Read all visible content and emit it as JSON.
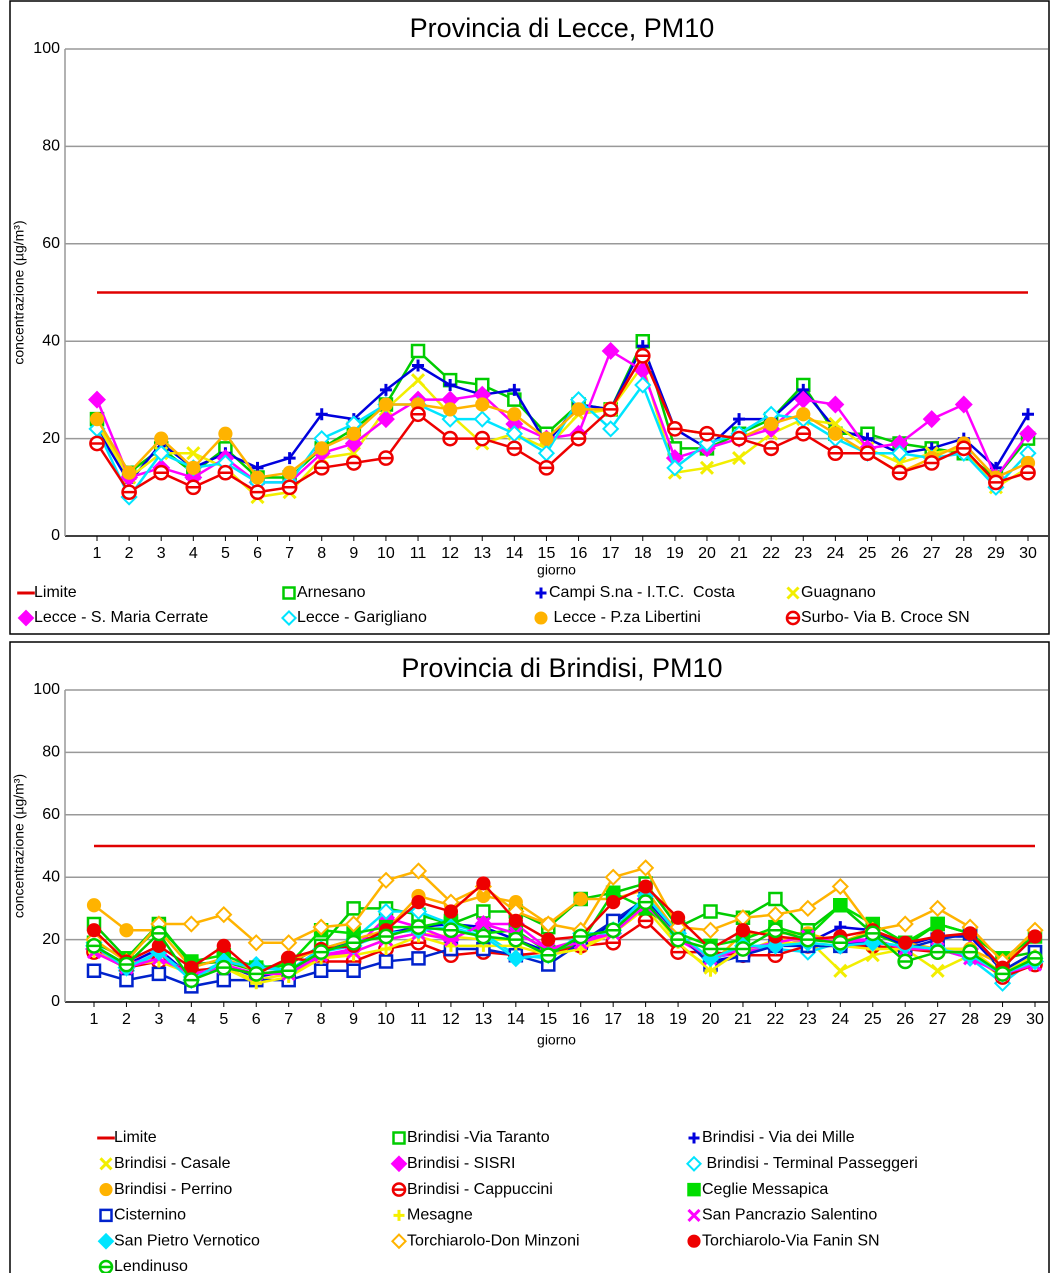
{
  "chart_data": [
    {
      "type": "line",
      "title": "Provincia di Lecce, PM10",
      "x_label": "giorno",
      "y_label": "concentrazione (µg/m³)",
      "categories": [
        "1",
        "2",
        "3",
        "4",
        "5",
        "6",
        "7",
        "8",
        "9",
        "10",
        "11",
        "12",
        "13",
        "14",
        "15",
        "16",
        "17",
        "18",
        "19",
        "20",
        "21",
        "22",
        "23",
        "24",
        "25",
        "26",
        "27",
        "28",
        "29",
        "30"
      ],
      "ylim": [
        0,
        100
      ],
      "yticks": [
        0,
        20,
        40,
        60,
        80,
        100
      ],
      "grid": true,
      "series": [
        {
          "name": "Limite",
          "color": "#e00000",
          "marker": "none",
          "values": [
            50,
            50,
            50,
            50,
            50,
            50,
            50,
            50,
            50,
            50,
            50,
            50,
            50,
            50,
            50,
            50,
            50,
            50,
            50,
            50,
            50,
            50,
            50,
            50,
            50,
            50,
            50,
            50,
            50,
            50
          ]
        },
        {
          "name": "Arnesano",
          "color": "#00cc00",
          "marker": "square-open",
          "values": [
            24,
            13,
            18,
            13,
            18,
            12,
            12,
            18,
            22,
            27,
            38,
            32,
            31,
            28,
            21,
            27,
            26,
            40,
            18,
            18,
            21,
            24,
            31,
            21,
            21,
            19,
            18,
            17,
            12,
            20
          ]
        },
        {
          "name": "Campi S.na - I.T.C.  Costa",
          "color": "#0000dd",
          "marker": "plus",
          "values": [
            22,
            11,
            19,
            14,
            17,
            14,
            16,
            25,
            24,
            30,
            35,
            31,
            29,
            30,
            19,
            27,
            26,
            39,
            22,
            18,
            24,
            24,
            30,
            22,
            20,
            17,
            18,
            20,
            14,
            25
          ]
        },
        {
          "name": "Guagnano",
          "color": "#f2ee00",
          "marker": "x",
          "values": [
            23,
            12,
            17,
            17,
            14,
            8,
            9,
            16,
            17,
            26,
            32,
            25,
            19,
            21,
            18,
            25,
            26,
            35,
            13,
            14,
            16,
            21,
            24,
            23,
            18,
            15,
            17,
            18,
            10,
            14
          ]
        },
        {
          "name": "Lecce - S. Maria Cerrate",
          "color": "#ff00ff",
          "marker": "diamond",
          "values": [
            28,
            12,
            14,
            12,
            16,
            11,
            11,
            17,
            19,
            24,
            28,
            28,
            29,
            23,
            20,
            21,
            38,
            34,
            16,
            18,
            20,
            22,
            28,
            27,
            18,
            19,
            24,
            27,
            12,
            21
          ]
        },
        {
          "name": "Lecce - Garigliano",
          "color": "#00e5ff",
          "marker": "diamond-open",
          "values": [
            22,
            8,
            17,
            14,
            15,
            11,
            11,
            20,
            23,
            27,
            27,
            24,
            24,
            21,
            17,
            28,
            22,
            31,
            14,
            19,
            21,
            25,
            24,
            20,
            17,
            17,
            16,
            17,
            10,
            17
          ]
        },
        {
          "name": " Lecce - P.za Libertini",
          "color": "#ffb300",
          "marker": "circle",
          "values": [
            24,
            13,
            20,
            14,
            21,
            12,
            13,
            18,
            21,
            27,
            27,
            26,
            27,
            25,
            20,
            26,
            26,
            37,
            22,
            21,
            20,
            23,
            25,
            21,
            17,
            13,
            16,
            19,
            12,
            15
          ]
        },
        {
          "name": "Surbo- Via B. Croce SN",
          "color": "#ee0000",
          "marker": "circle-bar",
          "values": [
            19,
            9,
            13,
            10,
            13,
            9,
            10,
            14,
            15,
            16,
            25,
            20,
            20,
            18,
            14,
            20,
            26,
            37,
            22,
            21,
            20,
            18,
            21,
            17,
            17,
            13,
            15,
            18,
            11,
            13
          ]
        }
      ]
    },
    {
      "type": "line",
      "title": "Provincia di Brindisi, PM10",
      "x_label": "giorno",
      "y_label": "concentrazione (µg/m³)",
      "categories": [
        "1",
        "2",
        "3",
        "4",
        "5",
        "6",
        "7",
        "8",
        "9",
        "10",
        "11",
        "12",
        "13",
        "14",
        "15",
        "16",
        "17",
        "18",
        "19",
        "20",
        "21",
        "22",
        "23",
        "24",
        "25",
        "26",
        "27",
        "28",
        "29",
        "30"
      ],
      "ylim": [
        0,
        100
      ],
      "yticks": [
        0,
        20,
        40,
        60,
        80,
        100
      ],
      "grid": true,
      "series": [
        {
          "name": "Limite",
          "color": "#e00000",
          "marker": "none",
          "values": [
            50,
            50,
            50,
            50,
            50,
            50,
            50,
            50,
            50,
            50,
            50,
            50,
            50,
            50,
            50,
            50,
            50,
            50,
            50,
            50,
            50,
            50,
            50,
            50,
            50,
            50,
            50,
            50,
            50,
            50
          ]
        },
        {
          "name": "Brindisi -Via Taranto",
          "color": "#00cc00",
          "marker": "square-open",
          "values": [
            25,
            14,
            25,
            12,
            13,
            10,
            12,
            18,
            30,
            30,
            28,
            25,
            29,
            29,
            24,
            33,
            35,
            38,
            24,
            29,
            27,
            33,
            23,
            31,
            22,
            18,
            25,
            22,
            14,
            16
          ]
        },
        {
          "name": "Brindisi - Via dei Mille",
          "color": "#0000dd",
          "marker": "plus",
          "values": [
            18,
            12,
            17,
            8,
            12,
            8,
            10,
            17,
            19,
            22,
            24,
            25,
            24,
            20,
            16,
            19,
            25,
            33,
            22,
            13,
            15,
            19,
            19,
            24,
            23,
            18,
            21,
            21,
            10,
            16
          ]
        },
        {
          "name": "Brindisi - Casale",
          "color": "#f2ee00",
          "marker": "x",
          "values": [
            17,
            11,
            15,
            9,
            11,
            7,
            9,
            14,
            16,
            20,
            22,
            21,
            20,
            20,
            15,
            18,
            22,
            30,
            18,
            11,
            16,
            20,
            20,
            10,
            15,
            17,
            10,
            15,
            8,
            14
          ]
        },
        {
          "name": "Brindisi - SISRI",
          "color": "#ff00ff",
          "marker": "diamond",
          "values": [
            17,
            12,
            15,
            9,
            12,
            9,
            10,
            15,
            17,
            27,
            24,
            20,
            25,
            25,
            17,
            20,
            22,
            33,
            20,
            14,
            16,
            18,
            20,
            20,
            20,
            17,
            17,
            17,
            9,
            13
          ]
        },
        {
          "name": " Brindisi - Terminal Passeggeri",
          "color": "#00e5ff",
          "marker": "diamond-open",
          "values": [
            19,
            10,
            16,
            8,
            13,
            12,
            10,
            17,
            20,
            29,
            29,
            25,
            22,
            15,
            14,
            22,
            22,
            34,
            22,
            13,
            18,
            17,
            16,
            19,
            19,
            18,
            17,
            14,
            6,
            14
          ]
        },
        {
          "name": "Brindisi - Perrino",
          "color": "#ffb300",
          "marker": "circle",
          "values": [
            31,
            23,
            23,
            11,
            14,
            10,
            13,
            17,
            20,
            23,
            34,
            31,
            34,
            32,
            25,
            33,
            33,
            36,
            22,
            12,
            22,
            22,
            22,
            19,
            23,
            19,
            17,
            17,
            12,
            22
          ]
        },
        {
          "name": "Brindisi - Cappuccini",
          "color": "#ee0000",
          "marker": "circle-bar",
          "values": [
            16,
            11,
            13,
            10,
            11,
            9,
            14,
            13,
            13,
            17,
            19,
            15,
            16,
            15,
            16,
            18,
            19,
            26,
            16,
            16,
            15,
            15,
            18,
            18,
            18,
            17,
            16,
            16,
            8,
            12
          ]
        },
        {
          "name": "Ceglie Messapica",
          "color": "#00dd00",
          "marker": "square",
          "values": [
            19,
            14,
            24,
            13,
            15,
            11,
            12,
            23,
            22,
            24,
            24,
            26,
            22,
            23,
            16,
            19,
            35,
            30,
            22,
            18,
            20,
            24,
            21,
            31,
            25,
            19,
            25,
            22,
            14,
            21
          ]
        },
        {
          "name": "Cisternino",
          "color": "#0022cc",
          "marker": "square-open",
          "values": [
            10,
            7,
            9,
            5,
            7,
            7,
            7,
            10,
            10,
            13,
            14,
            17,
            17,
            15,
            12,
            19,
            26,
            33,
            22,
            12,
            15,
            18,
            18,
            18,
            20,
            17,
            20,
            22,
            10,
            16
          ]
        },
        {
          "name": "Mesagne",
          "color": "#f5f000",
          "marker": "plus",
          "values": [
            16,
            12,
            13,
            9,
            11,
            6,
            8,
            14,
            15,
            17,
            21,
            18,
            18,
            18,
            15,
            17,
            22,
            32,
            19,
            10,
            17,
            19,
            19,
            18,
            17,
            17,
            17,
            17,
            9,
            15
          ]
        },
        {
          "name": "San Pancrazio Salentino",
          "color": "#ff00ff",
          "marker": "x",
          "values": [
            16,
            11,
            14,
            9,
            11,
            9,
            9,
            15,
            16,
            20,
            22,
            20,
            25,
            22,
            17,
            19,
            22,
            31,
            21,
            14,
            17,
            19,
            21,
            19,
            20,
            17,
            17,
            14,
            9,
            12
          ]
        },
        {
          "name": "San Pietro Vernotico",
          "color": "#00e5ff",
          "marker": "diamond",
          "values": [
            18,
            11,
            16,
            7,
            13,
            11,
            10,
            16,
            18,
            22,
            23,
            24,
            21,
            14,
            15,
            21,
            23,
            34,
            22,
            14,
            18,
            18,
            19,
            18,
            19,
            18,
            17,
            15,
            9,
            13
          ]
        },
        {
          "name": "Torchiarolo-Don Minzoni",
          "color": "#ffb300",
          "marker": "diamond-open",
          "values": [
            20,
            13,
            25,
            25,
            28,
            19,
            19,
            24,
            25,
            39,
            42,
            32,
            37,
            29,
            25,
            23,
            40,
            43,
            24,
            23,
            27,
            28,
            30,
            37,
            23,
            25,
            30,
            24,
            13,
            23
          ]
        },
        {
          "name": "Torchiarolo-Via Fanin SN",
          "color": "#ee0000",
          "marker": "circle",
          "values": [
            23,
            13,
            18,
            11,
            18,
            9,
            14,
            17,
            18,
            23,
            32,
            29,
            38,
            26,
            20,
            21,
            32,
            37,
            27,
            17,
            23,
            21,
            20,
            21,
            23,
            19,
            21,
            22,
            11,
            21
          ]
        },
        {
          "name": "Lendinuso",
          "color": "#00cc00",
          "marker": "circle-bar",
          "values": [
            18,
            12,
            22,
            7,
            11,
            9,
            10,
            16,
            19,
            21,
            24,
            23,
            21,
            20,
            15,
            21,
            23,
            32,
            20,
            17,
            17,
            23,
            20,
            19,
            22,
            13,
            16,
            16,
            9,
            14
          ]
        }
      ]
    }
  ]
}
